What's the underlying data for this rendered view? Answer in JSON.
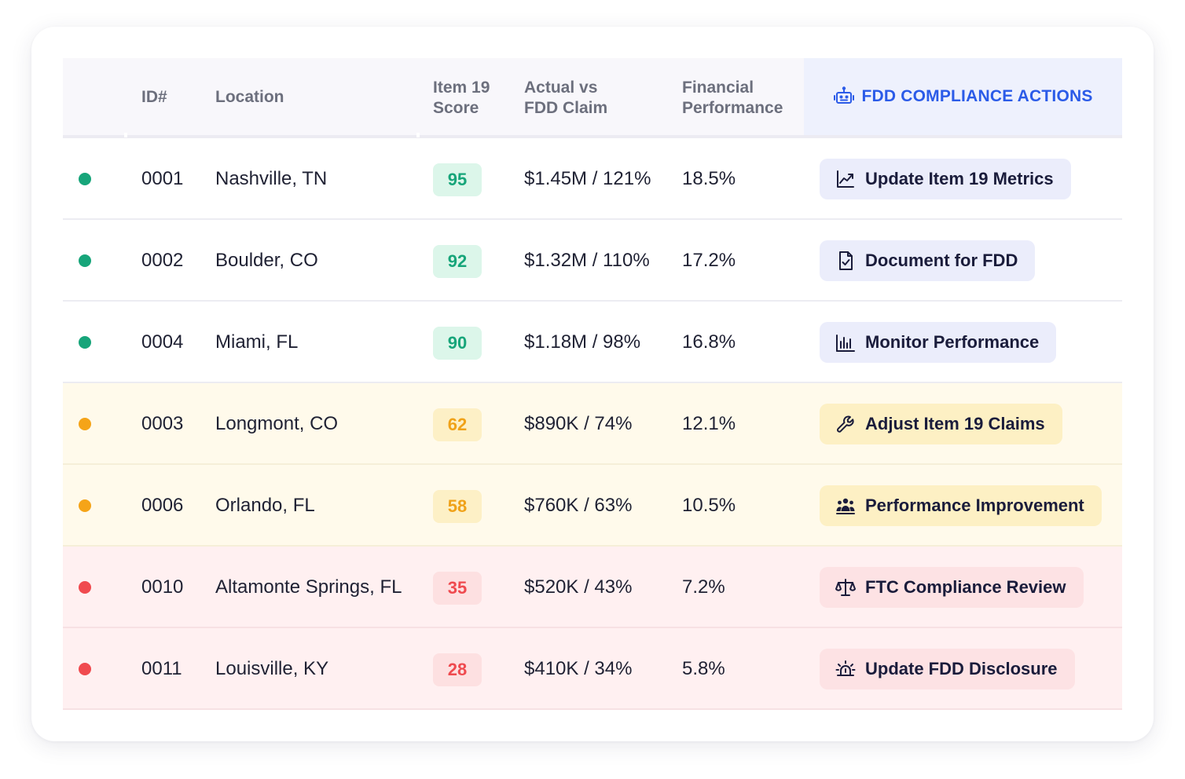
{
  "header": {
    "id": "ID#",
    "location": "Location",
    "score_line1": "Item 19",
    "score_line2": "Score",
    "actual_line1": "Actual vs",
    "actual_line2": "FDD Claim",
    "fin_line1": "Financial",
    "fin_line2": "Performance",
    "actions": "FDD COMPLIANCE ACTIONS",
    "actions_icon": "robot-icon"
  },
  "colors": {
    "green": "#17a57a",
    "amber": "#f5a418",
    "red": "#f04a4f",
    "accent": "#2b5be8"
  },
  "rows": [
    {
      "status": "green",
      "id": "0001",
      "location": "Nashville, TN",
      "score": "95",
      "actual": "$1.45M / 121%",
      "financial": "18.5%",
      "action": "Update Item 19 Metrics",
      "icon": "trend-chart-icon"
    },
    {
      "status": "green",
      "id": "0002",
      "location": "Boulder, CO",
      "score": "92",
      "actual": "$1.32M / 110%",
      "financial": "17.2%",
      "action": "Document for FDD",
      "icon": "document-check-icon"
    },
    {
      "status": "green",
      "id": "0004",
      "location": "Miami, FL",
      "score": "90",
      "actual": "$1.18M / 98%",
      "financial": "16.8%",
      "action": "Monitor Performance",
      "icon": "bar-chart-icon"
    },
    {
      "status": "amber",
      "id": "0003",
      "location": "Longmont, CO",
      "score": "62",
      "actual": "$890K / 74%",
      "financial": "12.1%",
      "action": "Adjust Item 19 Claims",
      "icon": "wrench-icon"
    },
    {
      "status": "amber",
      "id": "0006",
      "location": "Orlando, FL",
      "score": "58",
      "actual": "$760K / 63%",
      "financial": "10.5%",
      "action": "Performance Improvement",
      "icon": "team-icon"
    },
    {
      "status": "red",
      "id": "0010",
      "location": "Altamonte Springs, FL",
      "score": "35",
      "actual": "$520K / 43%",
      "financial": "7.2%",
      "action": "FTC Compliance Review",
      "icon": "scales-icon"
    },
    {
      "status": "red",
      "id": "0011",
      "location": "Louisville, KY",
      "score": "28",
      "actual": "$410K / 34%",
      "financial": "5.8%",
      "action": "Update FDD Disclosure",
      "icon": "alarm-icon"
    }
  ]
}
